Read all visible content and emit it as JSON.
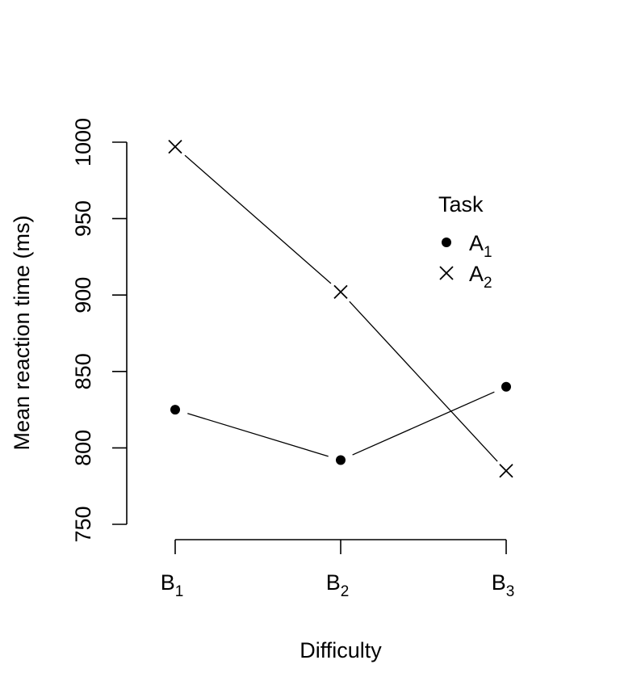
{
  "chart_data": {
    "type": "line",
    "xlabel": "Difficulty",
    "ylabel": "Mean reaction time (ms)",
    "categories": [
      {
        "base": "B",
        "sub": "1"
      },
      {
        "base": "B",
        "sub": "2"
      },
      {
        "base": "B",
        "sub": "3"
      }
    ],
    "yticks": [
      "750",
      "800",
      "850",
      "900",
      "950",
      "1000"
    ],
    "ylim": [
      750,
      1000
    ],
    "legend": {
      "title": "Task",
      "position": "top-right"
    },
    "series": [
      {
        "name": {
          "base": "A",
          "sub": "1"
        },
        "marker": "filled-circle",
        "values": [
          825,
          792,
          840
        ]
      },
      {
        "name": {
          "base": "A",
          "sub": "2"
        },
        "marker": "cross",
        "values": [
          997,
          902,
          785
        ]
      }
    ],
    "colors": {
      "line": "#000000",
      "background": "#ffffff"
    }
  }
}
